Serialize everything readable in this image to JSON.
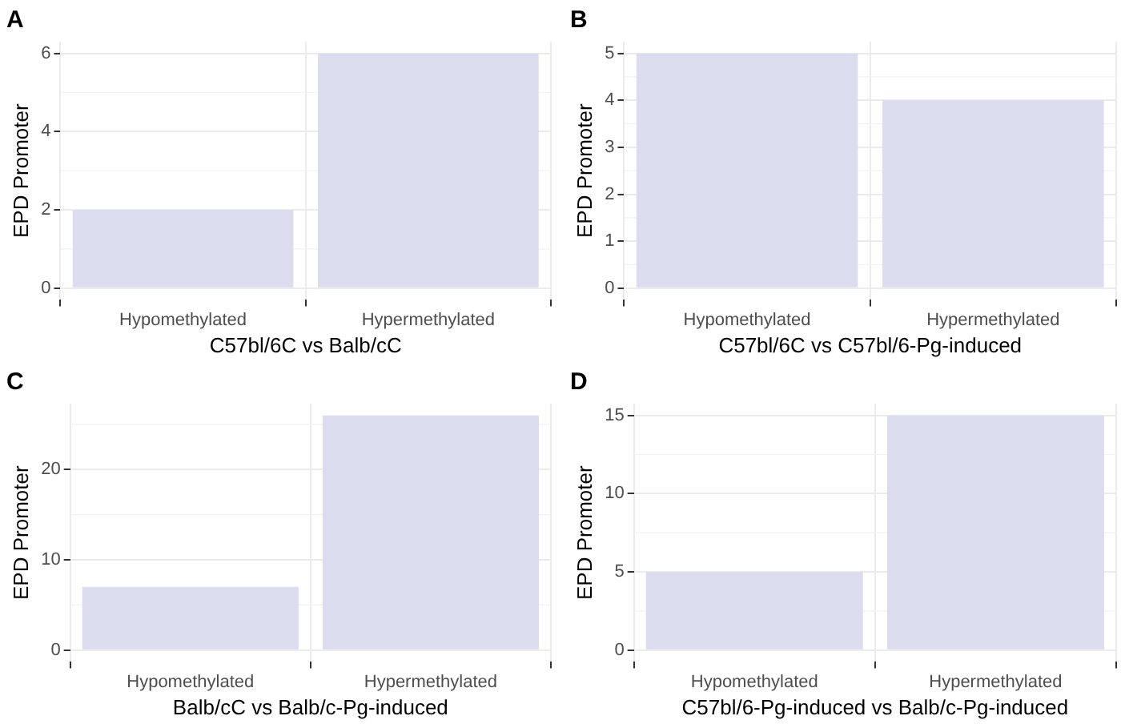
{
  "chart_data": [
    {
      "type": "bar",
      "title": "A",
      "xlabel": "C57bl/6C vs Balb/cC",
      "ylabel": "EPD Promoter",
      "categories": [
        "Hypomethylated",
        "Hypermethylated"
      ],
      "values": [
        2,
        6
      ],
      "color": "#dcdcef",
      "ylim": [
        -0.3,
        6.3
      ],
      "yticks": [
        0,
        2,
        4,
        6
      ],
      "grid": true
    },
    {
      "type": "bar",
      "title": "B",
      "xlabel": "C57bl/6C vs C57bl/6-Pg-induced",
      "ylabel": "EPD Promoter",
      "categories": [
        "Hypomethylated",
        "Hypermethylated"
      ],
      "values": [
        5,
        4
      ],
      "color": "#dcdcef",
      "ylim": [
        -0.25,
        5.25
      ],
      "yticks": [
        0,
        1,
        2,
        3,
        4,
        5
      ],
      "grid": true
    },
    {
      "type": "bar",
      "title": "C",
      "xlabel": "Balb/cC vs Balb/c-Pg-induced",
      "ylabel": "EPD Promoter",
      "categories": [
        "Hypomethylated",
        "Hypermethylated"
      ],
      "values": [
        7,
        26
      ],
      "color": "#dcdcef",
      "ylim": [
        -1.3,
        27.3
      ],
      "yticks": [
        0,
        10,
        20
      ],
      "grid": true
    },
    {
      "type": "bar",
      "title": "D",
      "xlabel": "C57bl/6-Pg-induced vs Balb/c-Pg-induced",
      "ylabel": "EPD Promoter",
      "categories": [
        "Hypomethylated",
        "Hypermethylated"
      ],
      "values": [
        5,
        15
      ],
      "color": "#dcdcef",
      "ylim": [
        -0.75,
        15.75
      ],
      "yticks": [
        0,
        5,
        10,
        15
      ],
      "grid": true
    }
  ]
}
